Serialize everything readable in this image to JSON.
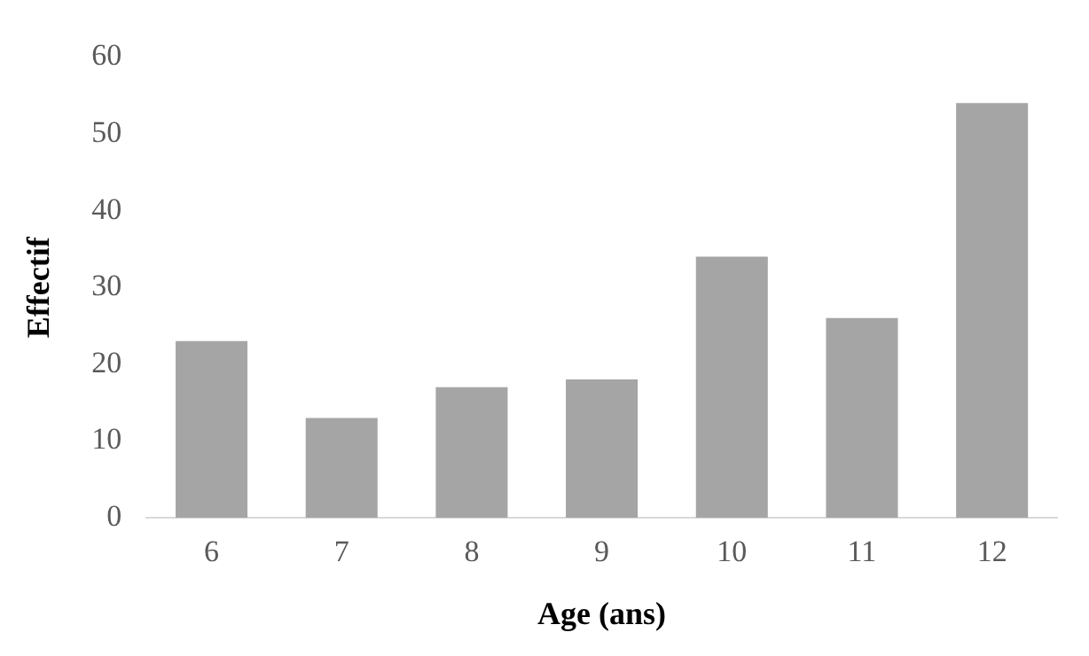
{
  "chart_data": {
    "type": "bar",
    "xlabel": "Age (ans)",
    "ylabel": "Effectif",
    "categories": [
      "6",
      "7",
      "8",
      "9",
      "10",
      "11",
      "12"
    ],
    "values": [
      23,
      13,
      17,
      18,
      34,
      26,
      54
    ],
    "color": "#a5a5a5",
    "ylim": [
      0,
      60
    ],
    "yticks": [
      0,
      10,
      20,
      30,
      40,
      50,
      60
    ],
    "grid": false,
    "legend": false
  }
}
